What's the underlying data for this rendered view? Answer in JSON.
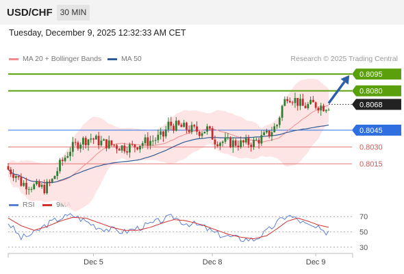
{
  "header": {
    "symbol": "USD/CHF",
    "timeframe": "30 MIN"
  },
  "datetime": "Tuesday, December 9, 2025 12:32:33 AM CET",
  "legend": {
    "ma20_label": "MA 20 + Bollinger Bands",
    "ma50_label": "MA 50",
    "copyright": "Research © 2025 Trading Central"
  },
  "rsi_legend": {
    "rsi_label": "RSI",
    "ma_label": "9MA"
  },
  "colors": {
    "ma20": "#f28b8b",
    "ma50": "#2f5b96",
    "bollinger_fill": "#fde0e0",
    "green_level": "#5aa00c",
    "blue_level": "#2f6fe0",
    "red_level": "#e57373",
    "last_price_box": "#222222",
    "arrow": "#2f5ea8",
    "candle_up": "#2e7d32",
    "candle_down": "#c62828",
    "rsi_line": "#5b7fd6",
    "rsi_ma": "#d32f2f"
  },
  "chart_data": [
    {
      "type": "candlestick",
      "title": "USD/CHF",
      "ylim": [
        0.7987,
        0.8103
      ],
      "x_labels": [
        "Dec 5",
        "Dec 8",
        "Dec 9"
      ],
      "levels": [
        {
          "value": 0.8095,
          "label": "0.8095",
          "kind": "resistance"
        },
        {
          "value": 0.808,
          "label": "0.8080",
          "kind": "resistance"
        },
        {
          "value": 0.8068,
          "label": "0.8068",
          "kind": "last"
        },
        {
          "value": 0.8045,
          "label": "0.8045",
          "kind": "pivot"
        },
        {
          "value": 0.803,
          "label": "0.8030",
          "kind": "support"
        },
        {
          "value": 0.8015,
          "label": "0.8015",
          "kind": "support"
        }
      ],
      "close_anchors": [
        [
          0,
          0.801
        ],
        [
          3,
          0.8005
        ],
        [
          5,
          0.7998
        ],
        [
          10,
          0.7995
        ],
        [
          14,
          0.7993
        ],
        [
          17,
          0.8
        ],
        [
          20,
          0.8014
        ],
        [
          24,
          0.8028
        ],
        [
          28,
          0.8035
        ],
        [
          32,
          0.8038
        ],
        [
          36,
          0.8034
        ],
        [
          40,
          0.8032
        ],
        [
          44,
          0.803
        ],
        [
          48,
          0.803
        ],
        [
          52,
          0.8034
        ],
        [
          56,
          0.8036
        ],
        [
          60,
          0.804
        ],
        [
          62,
          0.805
        ],
        [
          66,
          0.8048
        ],
        [
          70,
          0.8046
        ],
        [
          74,
          0.8044
        ],
        [
          77,
          0.8046
        ],
        [
          80,
          0.8036
        ],
        [
          85,
          0.8034
        ],
        [
          90,
          0.8033
        ],
        [
          95,
          0.8034
        ],
        [
          98,
          0.8038
        ],
        [
          101,
          0.8042
        ],
        [
          104,
          0.805
        ],
        [
          106,
          0.8066
        ],
        [
          108,
          0.8076
        ],
        [
          111,
          0.8072
        ],
        [
          114,
          0.8066
        ],
        [
          118,
          0.8068
        ],
        [
          122,
          0.8066
        ],
        [
          124,
          0.8067
        ]
      ],
      "arrow": {
        "from": [
          124,
          0.8069
        ],
        "to": [
          132,
          0.8094
        ]
      }
    },
    {
      "type": "line",
      "title": "RSI",
      "ylim": [
        20,
        80
      ],
      "y_ticks": [
        70,
        50,
        30
      ],
      "series": [
        {
          "name": "RSI",
          "anchors": [
            [
              0,
              62
            ],
            [
              5,
              42
            ],
            [
              10,
              48
            ],
            [
              15,
              60
            ],
            [
              20,
              68
            ],
            [
              25,
              72
            ],
            [
              30,
              64
            ],
            [
              35,
              56
            ],
            [
              40,
              53
            ],
            [
              45,
              50
            ],
            [
              50,
              55
            ],
            [
              55,
              60
            ],
            [
              60,
              66
            ],
            [
              64,
              70
            ],
            [
              68,
              62
            ],
            [
              72,
              60
            ],
            [
              76,
              56
            ],
            [
              80,
              48
            ],
            [
              85,
              44
            ],
            [
              90,
              41
            ],
            [
              95,
              40
            ],
            [
              100,
              50
            ],
            [
              104,
              62
            ],
            [
              108,
              72
            ],
            [
              112,
              66
            ],
            [
              116,
              58
            ],
            [
              120,
              54
            ],
            [
              122,
              48
            ],
            [
              124,
              52
            ]
          ]
        },
        {
          "name": "9MA",
          "anchors": [
            [
              0,
              68
            ],
            [
              5,
              58
            ],
            [
              10,
              52
            ],
            [
              15,
              57
            ],
            [
              20,
              64
            ],
            [
              25,
              69
            ],
            [
              30,
              68
            ],
            [
              35,
              62
            ],
            [
              40,
              56
            ],
            [
              45,
              52
            ],
            [
              50,
              52
            ],
            [
              55,
              56
            ],
            [
              60,
              62
            ],
            [
              64,
              66
            ],
            [
              68,
              65
            ],
            [
              72,
              62
            ],
            [
              76,
              58
            ],
            [
              80,
              53
            ],
            [
              85,
              47
            ],
            [
              90,
              43
            ],
            [
              95,
              41
            ],
            [
              100,
              45
            ],
            [
              104,
              54
            ],
            [
              108,
              64
            ],
            [
              112,
              68
            ],
            [
              116,
              64
            ],
            [
              120,
              59
            ],
            [
              124,
              56
            ]
          ]
        }
      ]
    }
  ]
}
